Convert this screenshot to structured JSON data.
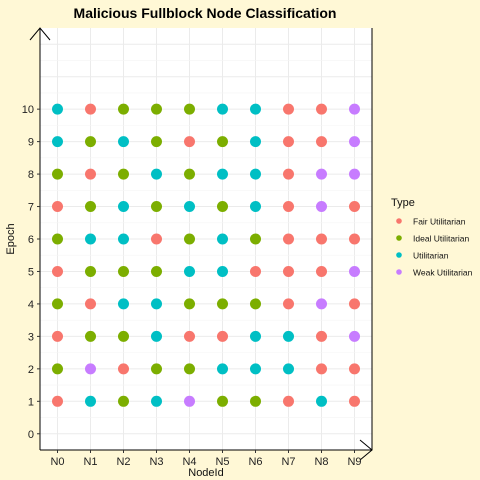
{
  "chart_data": {
    "type": "scatter",
    "title": "Malicious Fullblock Node Classification",
    "xlabel": "NodeId",
    "ylabel": "Epoch",
    "x_categories": [
      "N0",
      "N1",
      "N2",
      "N3",
      "N4",
      "N5",
      "N6",
      "N7",
      "N8",
      "N9"
    ],
    "y_ticks": [
      "0",
      "1",
      "2",
      "3",
      "4",
      "5",
      "6",
      "7",
      "8",
      "9",
      "10"
    ],
    "ylim": [
      -0.5,
      12.5
    ],
    "grid": true,
    "legend": {
      "title": "Type",
      "position": "right",
      "entries": [
        {
          "name": "Fair Utilitarian",
          "color": "#f8766d"
        },
        {
          "name": "Ideal Utilitarian",
          "color": "#7cae00"
        },
        {
          "name": "Utilitarian",
          "color": "#00bfc4"
        },
        {
          "name": "Weak Utilitarian",
          "color": "#c77cff"
        }
      ]
    },
    "grid_types": [
      [
        "F",
        "U",
        "I",
        "U",
        "W",
        "I",
        "I",
        "F",
        "U",
        "F"
      ],
      [
        "I",
        "W",
        "F",
        "I",
        "I",
        "U",
        "U",
        "U",
        "F",
        "F"
      ],
      [
        "F",
        "I",
        "I",
        "U",
        "F",
        "F",
        "U",
        "U",
        "F",
        "W"
      ],
      [
        "I",
        "F",
        "U",
        "U",
        "I",
        "I",
        "I",
        "F",
        "W",
        "F"
      ],
      [
        "F",
        "I",
        "I",
        "I",
        "U",
        "U",
        "F",
        "F",
        "F",
        "W"
      ],
      [
        "I",
        "U",
        "U",
        "F",
        "I",
        "U",
        "I",
        "F",
        "F",
        "F"
      ],
      [
        "F",
        "I",
        "U",
        "I",
        "U",
        "I",
        "U",
        "F",
        "W",
        "F"
      ],
      [
        "I",
        "F",
        "I",
        "U",
        "I",
        "U",
        "U",
        "F",
        "W",
        "W"
      ],
      [
        "U",
        "I",
        "U",
        "I",
        "F",
        "I",
        "U",
        "F",
        "F",
        "W"
      ],
      [
        "U",
        "F",
        "I",
        "I",
        "I",
        "U",
        "U",
        "F",
        "F",
        "W"
      ]
    ],
    "type_codes": {
      "F": "Fair Utilitarian",
      "I": "Ideal Utilitarian",
      "U": "Utilitarian",
      "W": "Weak Utilitarian"
    }
  }
}
